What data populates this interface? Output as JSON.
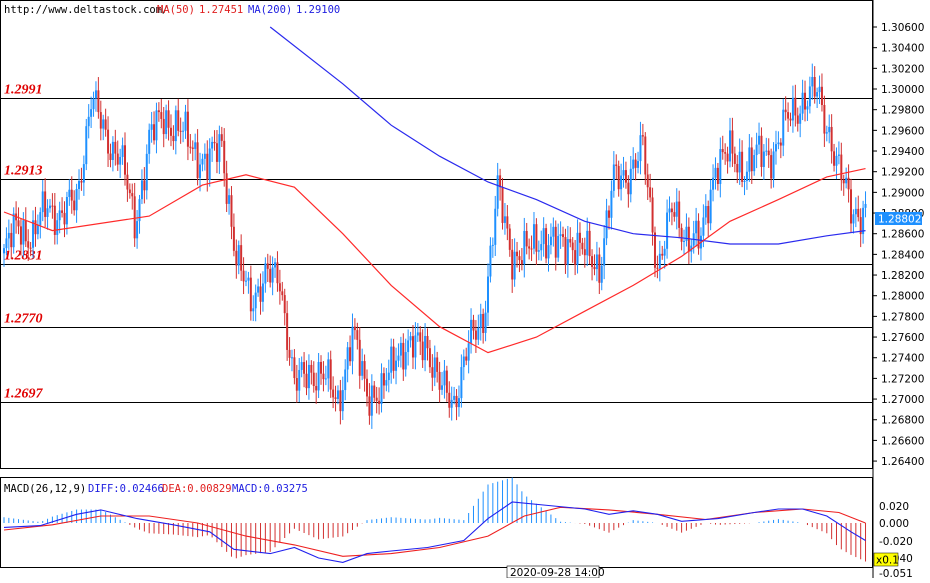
{
  "header": {
    "site": "http://www.deltastock.com/",
    "ma50_label": "MA(50)",
    "ma50_value": "1.27451",
    "ma200_label": "MA(200)",
    "ma200_value": "1.29100"
  },
  "colors": {
    "bull": "#1e90ff",
    "bear": "#d23030",
    "ma50": "#ff2a2a",
    "ma200": "#2a2aee",
    "level": "#000000",
    "level_label": "#e00000",
    "price_tag_bg": "#1e90ff",
    "zoom_bg": "#ffff00"
  },
  "price_axis": {
    "ticks": [
      "1.30600",
      "1.30400",
      "1.30200",
      "1.30000",
      "1.29800",
      "1.29600",
      "1.29400",
      "1.29200",
      "1.29000",
      "1.28800",
      "1.28600",
      "1.28400",
      "1.28200",
      "1.28000",
      "1.27800",
      "1.27600",
      "1.27400",
      "1.27200",
      "1.27000",
      "1.26800",
      "1.26600",
      "1.26400"
    ],
    "current_price": "1.28802"
  },
  "levels": [
    {
      "label": "1.2991",
      "value": 1.2991
    },
    {
      "label": "1.2913",
      "value": 1.2913
    },
    {
      "label": "1.2831",
      "value": 1.2831
    },
    {
      "label": "1.2770",
      "value": 1.277
    },
    {
      "label": "1.2697",
      "value": 1.2697
    }
  ],
  "macd": {
    "label": "MACD(26,12,9)",
    "diff_label": "DIFF:0.02466",
    "dea_label": "DEA:0.00829",
    "macd_label": "MACD:0.03275",
    "ticks": [
      "0.020",
      "0.000",
      "-0.020"
    ],
    "zoom_label": "x0.1",
    "low_tick_partial": "-0.040",
    "low_value": "-0.051"
  },
  "time_label": "2020-09-28 14:00",
  "chart_data": {
    "type": "candlestick",
    "ylim": [
      1.2635,
      1.3075
    ],
    "anchors": [
      {
        "i": 0,
        "p": 1.284
      },
      {
        "i": 6,
        "p": 1.287
      },
      {
        "i": 12,
        "p": 1.2855
      },
      {
        "i": 18,
        "p": 1.289
      },
      {
        "i": 24,
        "p": 1.2875
      },
      {
        "i": 30,
        "p": 1.2895
      },
      {
        "i": 36,
        "p": 1.299
      },
      {
        "i": 42,
        "p": 1.2955
      },
      {
        "i": 48,
        "p": 1.2935
      },
      {
        "i": 54,
        "p": 1.287
      },
      {
        "i": 60,
        "p": 1.295
      },
      {
        "i": 66,
        "p": 1.2975
      },
      {
        "i": 72,
        "p": 1.296
      },
      {
        "i": 78,
        "p": 1.2945
      },
      {
        "i": 84,
        "p": 1.2925
      },
      {
        "i": 90,
        "p": 1.295
      },
      {
        "i": 96,
        "p": 1.283
      },
      {
        "i": 102,
        "p": 1.28
      },
      {
        "i": 108,
        "p": 1.2815
      },
      {
        "i": 114,
        "p": 1.282
      },
      {
        "i": 120,
        "p": 1.271
      },
      {
        "i": 126,
        "p": 1.273
      },
      {
        "i": 132,
        "p": 1.272
      },
      {
        "i": 138,
        "p": 1.27
      },
      {
        "i": 144,
        "p": 1.276
      },
      {
        "i": 150,
        "p": 1.271
      },
      {
        "i": 156,
        "p": 1.27
      },
      {
        "i": 162,
        "p": 1.275
      },
      {
        "i": 168,
        "p": 1.2745
      },
      {
        "i": 174,
        "p": 1.276
      },
      {
        "i": 180,
        "p": 1.271
      },
      {
        "i": 186,
        "p": 1.27
      },
      {
        "i": 192,
        "p": 1.275
      },
      {
        "i": 198,
        "p": 1.278
      },
      {
        "i": 204,
        "p": 1.29
      },
      {
        "i": 210,
        "p": 1.284
      },
      {
        "i": 216,
        "p": 1.284
      },
      {
        "i": 222,
        "p": 1.286
      },
      {
        "i": 228,
        "p": 1.2845
      },
      {
        "i": 234,
        "p": 1.2855
      },
      {
        "i": 240,
        "p": 1.284
      },
      {
        "i": 246,
        "p": 1.283
      },
      {
        "i": 252,
        "p": 1.291
      },
      {
        "i": 258,
        "p": 1.292
      },
      {
        "i": 264,
        "p": 1.294
      },
      {
        "i": 270,
        "p": 1.283
      },
      {
        "i": 276,
        "p": 1.288
      },
      {
        "i": 282,
        "p": 1.286
      },
      {
        "i": 288,
        "p": 1.285
      },
      {
        "i": 294,
        "p": 1.293
      },
      {
        "i": 300,
        "p": 1.2935
      },
      {
        "i": 306,
        "p": 1.2925
      },
      {
        "i": 312,
        "p": 1.2935
      },
      {
        "i": 318,
        "p": 1.294
      },
      {
        "i": 324,
        "p": 1.297
      },
      {
        "i": 330,
        "p": 1.299
      },
      {
        "i": 336,
        "p": 1.2995
      },
      {
        "i": 341,
        "p": 1.296
      },
      {
        "i": 345,
        "p": 1.292
      },
      {
        "i": 350,
        "p": 1.2885
      },
      {
        "i": 356,
        "p": 1.288
      }
    ],
    "ma50": [
      [
        0,
        1.2881
      ],
      [
        20,
        1.2863
      ],
      [
        60,
        1.2877
      ],
      [
        82,
        1.2907
      ],
      [
        100,
        1.2917
      ],
      [
        120,
        1.2905
      ],
      [
        140,
        1.286
      ],
      [
        160,
        1.281
      ],
      [
        180,
        1.277
      ],
      [
        200,
        1.2745
      ],
      [
        220,
        1.276
      ],
      [
        240,
        1.2785
      ],
      [
        260,
        1.281
      ],
      [
        280,
        1.2838
      ],
      [
        300,
        1.2872
      ],
      [
        320,
        1.2893
      ],
      [
        340,
        1.2915
      ],
      [
        356,
        1.2923
      ]
    ],
    "ma200": [
      [
        110,
        1.306
      ],
      [
        140,
        1.3005
      ],
      [
        160,
        1.2965
      ],
      [
        180,
        1.2935
      ],
      [
        200,
        1.291
      ],
      [
        220,
        1.2893
      ],
      [
        240,
        1.2872
      ],
      [
        260,
        1.286
      ],
      [
        280,
        1.2856
      ],
      [
        300,
        1.285
      ],
      [
        320,
        1.285
      ],
      [
        340,
        1.2858
      ],
      [
        356,
        1.2863
      ]
    ],
    "macd_ylim": [
      -0.051,
      0.035
    ],
    "diff": [
      [
        0,
        -0.005
      ],
      [
        15,
        -0.003
      ],
      [
        30,
        0.01
      ],
      [
        40,
        0.015
      ],
      [
        55,
        0.005
      ],
      [
        70,
        -0.002
      ],
      [
        85,
        -0.01
      ],
      [
        95,
        -0.03
      ],
      [
        110,
        -0.035
      ],
      [
        120,
        -0.028
      ],
      [
        130,
        -0.04
      ],
      [
        140,
        -0.045
      ],
      [
        150,
        -0.035
      ],
      [
        160,
        -0.032
      ],
      [
        175,
        -0.028
      ],
      [
        190,
        -0.02
      ],
      [
        200,
        0.005
      ],
      [
        210,
        0.024
      ],
      [
        225,
        0.02
      ],
      [
        240,
        0.016
      ],
      [
        250,
        0.01
      ],
      [
        260,
        0.014
      ],
      [
        270,
        0.01
      ],
      [
        280,
        0.002
      ],
      [
        295,
        0.005
      ],
      [
        310,
        0.012
      ],
      [
        320,
        0.016
      ],
      [
        330,
        0.016
      ],
      [
        340,
        0.008
      ],
      [
        350,
        -0.01
      ],
      [
        356,
        -0.02
      ]
    ],
    "dea": [
      [
        0,
        -0.008
      ],
      [
        20,
        -0.002
      ],
      [
        40,
        0.008
      ],
      [
        60,
        0.008
      ],
      [
        80,
        0.0
      ],
      [
        100,
        -0.015
      ],
      [
        120,
        -0.025
      ],
      [
        140,
        -0.038
      ],
      [
        160,
        -0.035
      ],
      [
        180,
        -0.028
      ],
      [
        200,
        -0.015
      ],
      [
        215,
        0.008
      ],
      [
        230,
        0.018
      ],
      [
        250,
        0.015
      ],
      [
        270,
        0.01
      ],
      [
        290,
        0.004
      ],
      [
        310,
        0.012
      ],
      [
        330,
        0.016
      ],
      [
        345,
        0.012
      ],
      [
        356,
        0.0
      ]
    ],
    "hist_scale": 0.25
  }
}
